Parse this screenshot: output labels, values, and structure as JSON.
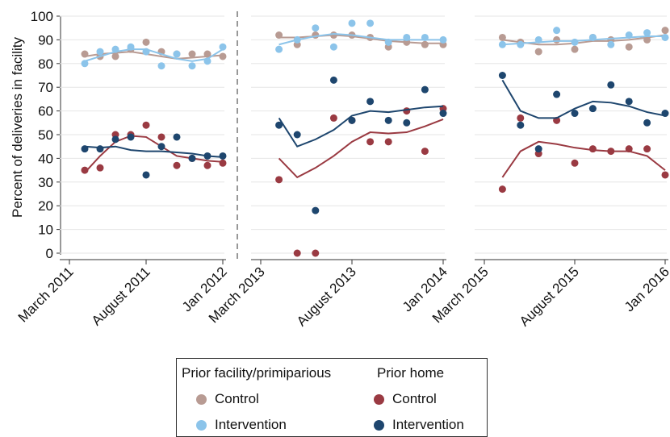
{
  "chart_data": {
    "type": "scatter",
    "ylabel": "Percent of deliveries in facility",
    "ylim": [
      0,
      100
    ],
    "yticks": [
      0,
      10,
      20,
      30,
      40,
      50,
      60,
      70,
      80,
      90,
      100
    ],
    "grid": true,
    "colors": {
      "facility_control": "#b89b93",
      "facility_intervention": "#8cc4ea",
      "home_control": "#9a3a42",
      "home_intervention": "#1e466e"
    },
    "panels": [
      {
        "xticks": [
          {
            "label": "March 2011",
            "x": 0
          },
          {
            "label": "August 2011",
            "x": 5
          },
          {
            "label": "Jan 2012",
            "x": 10
          }
        ],
        "xrange": [
          0,
          10
        ],
        "series": [
          {
            "key": "facility_control",
            "x": [
              1,
              2,
              3,
              4,
              5,
              6,
              7,
              8,
              9,
              10
            ],
            "y": [
              84,
              83,
              83,
              86,
              89,
              85,
              84,
              84,
              84,
              83
            ],
            "trend": [
              83,
              84,
              84.5,
              85,
              84,
              83,
              82,
              82.5,
              83,
              83.5
            ]
          },
          {
            "key": "facility_intervention",
            "x": [
              1,
              2,
              3,
              4,
              5,
              6,
              7,
              8,
              9,
              10
            ],
            "y": [
              80,
              85,
              86,
              87,
              85,
              79,
              84,
              79,
              81,
              87
            ],
            "trend": [
              81,
              83,
              85,
              86,
              86,
              84,
              82,
              81,
              82,
              86
            ]
          },
          {
            "key": "home_control",
            "x": [
              1,
              2,
              3,
              4,
              5,
              6,
              7,
              8,
              9,
              10
            ],
            "y": [
              35,
              36,
              50,
              50,
              54,
              49,
              37,
              40,
              37,
              38
            ],
            "trend": [
              34,
              41,
              47,
              49.5,
              49,
              45,
              41,
              40,
              39,
              38.5
            ]
          },
          {
            "key": "home_intervention",
            "x": [
              1,
              2,
              3,
              4,
              5,
              6,
              7,
              8,
              9,
              10
            ],
            "y": [
              44,
              44,
              48,
              49,
              33,
              45,
              49,
              40,
              41,
              41
            ],
            "trend": [
              45,
              44.5,
              45,
              43.5,
              43,
              43,
              42.5,
              42,
              41,
              40.5
            ]
          }
        ]
      },
      {
        "xticks": [
          {
            "label": "March 2013",
            "x": 0
          },
          {
            "label": "August 2013",
            "x": 5
          },
          {
            "label": "Jan 2014",
            "x": 10
          }
        ],
        "xrange": [
          0,
          10
        ],
        "series": [
          {
            "key": "facility_control",
            "x": [
              1,
              2,
              3,
              4,
              5,
              6,
              7,
              8,
              9,
              10
            ],
            "y": [
              92,
              88,
              92,
              92,
              92,
              91,
              87,
              89,
              88,
              88
            ],
            "trend": [
              91,
              91,
              91.5,
              92,
              91.5,
              90.5,
              89.5,
              89,
              88.5,
              88.5
            ]
          },
          {
            "key": "facility_intervention",
            "x": [
              1,
              2,
              3,
              4,
              5,
              6,
              7,
              8,
              9,
              10
            ],
            "y": [
              86,
              90,
              95,
              87,
              97,
              97,
              89,
              91,
              91,
              90
            ],
            "trend": [
              88,
              90,
              91.5,
              92.5,
              92,
              91,
              90,
              90,
              90,
              90
            ]
          },
          {
            "key": "home_control",
            "x": [
              1,
              2,
              3,
              4,
              5,
              6,
              7,
              8,
              9,
              10
            ],
            "y": [
              31,
              0,
              0,
              57,
              56,
              47,
              47,
              60,
              43,
              61
            ],
            "trend": [
              40,
              32,
              36,
              41,
              47,
              51,
              50.5,
              51,
              53.5,
              56.5
            ]
          },
          {
            "key": "home_intervention",
            "x": [
              1,
              2,
              3,
              4,
              5,
              6,
              7,
              8,
              9,
              10
            ],
            "y": [
              54,
              50,
              18,
              73,
              56,
              64,
              56,
              55,
              69,
              59
            ],
            "trend": [
              57,
              45,
              48,
              52,
              58,
              60,
              59.5,
              60.5,
              61.5,
              62
            ]
          }
        ]
      },
      {
        "xticks": [
          {
            "label": "March 2015",
            "x": 0
          },
          {
            "label": "August 2015",
            "x": 5
          },
          {
            "label": "Jan 2016",
            "x": 10
          }
        ],
        "xrange": [
          0,
          10
        ],
        "series": [
          {
            "key": "facility_control",
            "x": [
              1,
              2,
              3,
              4,
              5,
              6,
              7,
              8,
              9,
              10
            ],
            "y": [
              91,
              89,
              85,
              90,
              86,
              91,
              90,
              87,
              90,
              94
            ],
            "trend": [
              90,
              89,
              88,
              88,
              88.5,
              89.5,
              89.5,
              90,
              91,
              92
            ]
          },
          {
            "key": "facility_intervention",
            "x": [
              1,
              2,
              3,
              4,
              5,
              6,
              7,
              8,
              9,
              10
            ],
            "y": [
              88,
              88,
              90,
              94,
              89,
              91,
              88,
              92,
              93,
              91
            ],
            "trend": [
              88,
              88.5,
              89,
              89.5,
              89.5,
              90,
              90.5,
              91,
              91.5,
              91.5
            ]
          },
          {
            "key": "home_control",
            "x": [
              1,
              2,
              3,
              4,
              5,
              6,
              7,
              8,
              9,
              10
            ],
            "y": [
              27,
              57,
              42,
              56,
              38,
              44,
              43,
              44,
              44,
              33
            ],
            "trend": [
              32,
              43,
              47,
              46,
              44.5,
              43.5,
              43,
              43,
              41,
              35
            ]
          },
          {
            "key": "home_intervention",
            "x": [
              1,
              2,
              3,
              4,
              5,
              6,
              7,
              8,
              9,
              10
            ],
            "y": [
              75,
              54,
              44,
              67,
              59,
              61,
              71,
              64,
              55,
              59
            ],
            "trend": [
              73,
              60,
              57,
              57,
              61,
              64,
              63.5,
              62,
              59.5,
              58
            ]
          }
        ]
      }
    ]
  },
  "legend": {
    "group1_title": "Prior facility/primiparious",
    "group2_title": "Prior home",
    "items": [
      {
        "label": "Control",
        "color": "#b89b93"
      },
      {
        "label": "Intervention",
        "color": "#8cc4ea"
      },
      {
        "label": "Control",
        "color": "#9a3a42"
      },
      {
        "label": "Intervention",
        "color": "#1e466e"
      }
    ]
  }
}
